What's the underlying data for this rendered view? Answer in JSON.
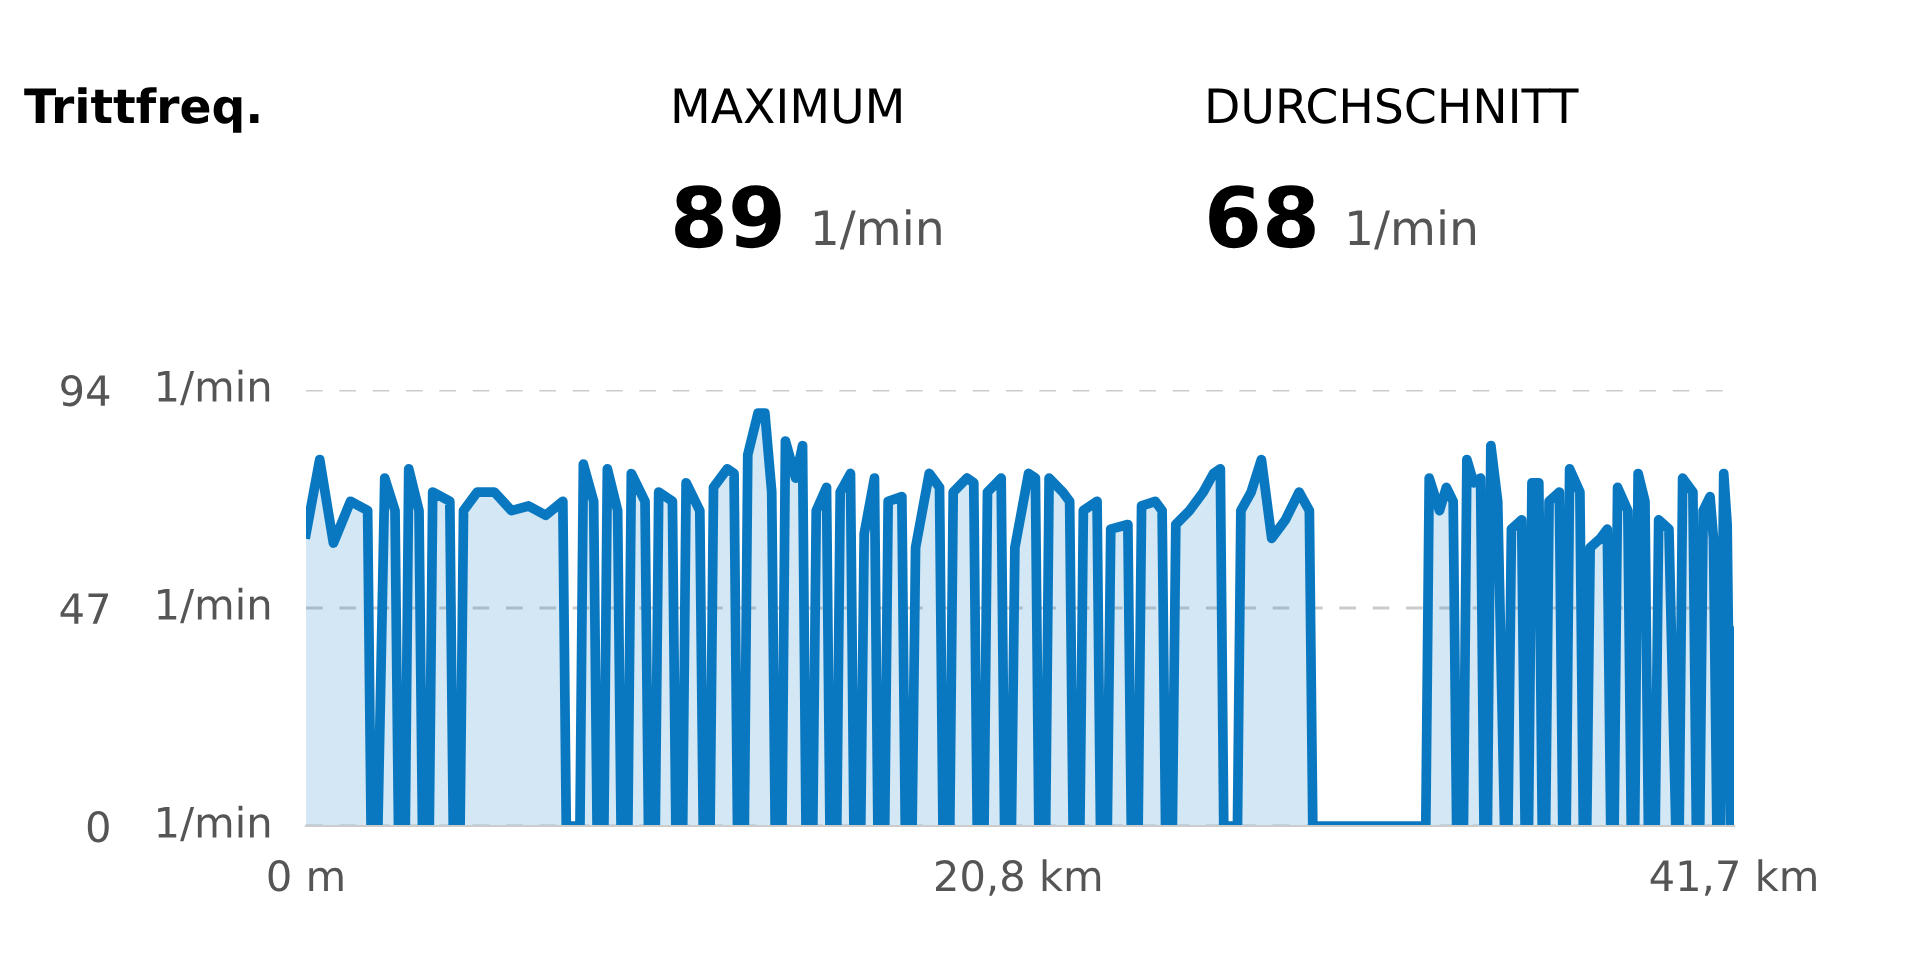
{
  "chart_data": {
    "type": "area",
    "title": "Trittfreq.",
    "annotations": [
      "MAXIMUM",
      "89 1/min",
      "DURCHSCHNITT",
      "68 1/min"
    ],
    "xlim": [
      0,
      41.7
    ],
    "ylim": [
      0,
      94
    ],
    "xticks": [
      {
        "value": 0,
        "label": "0 m"
      },
      {
        "value": 20.8,
        "label": "20,8 km"
      },
      {
        "value": 41.7,
        "label": "41,7 km"
      }
    ],
    "yticks": [
      0,
      47,
      94
    ],
    "ylabel": "1/min",
    "grid": "y",
    "legend": false,
    "series": [
      {
        "color": "#0a78c1",
        "x": [
          0,
          0.4,
          0.8,
          1.3,
          1.8,
          1.9,
          2.1,
          2.3,
          2.6,
          2.7,
          2.9,
          3.0,
          3.3,
          3.4,
          3.6,
          3.7,
          4.2,
          4.3,
          4.5,
          4.6,
          5.0,
          5.5,
          6.0,
          6.5,
          7.0,
          7.5,
          7.6,
          8.0,
          8.1,
          8.4,
          8.5,
          8.7,
          8.8,
          9.1,
          9.2,
          9.4,
          9.5,
          9.9,
          10.0,
          10.2,
          10.3,
          10.7,
          10.8,
          11.0,
          11.1,
          11.5,
          11.6,
          11.8,
          11.9,
          12.3,
          12.5,
          12.6,
          12.8,
          12.9,
          13.2,
          13.4,
          13.6,
          13.7,
          13.9,
          14.0,
          14.3,
          14.5,
          14.6,
          14.8,
          14.9,
          15.2,
          15.3,
          15.5,
          15.6,
          15.9,
          16.0,
          16.2,
          16.3,
          16.6,
          16.7,
          16.9,
          17.0,
          17.4,
          17.5,
          17.7,
          17.8,
          18.2,
          18.5,
          18.6,
          18.8,
          18.9,
          19.3,
          19.5,
          19.6,
          19.8,
          19.9,
          20.3,
          20.4,
          20.6,
          20.7,
          21.1,
          21.3,
          21.4,
          21.6,
          21.7,
          22.1,
          22.3,
          22.4,
          22.6,
          22.7,
          23.1,
          23.2,
          23.4,
          23.5,
          24.0,
          24.1,
          24.3,
          24.4,
          24.8,
          25.0,
          25.1,
          25.3,
          25.4,
          25.8,
          26.2,
          26.5,
          26.7,
          26.8,
          27.2,
          27.3,
          27.6,
          27.9,
          28.2,
          28.6,
          29.0,
          29.3,
          29.4,
          32.7,
          32.8,
          33.1,
          33.3,
          33.5,
          33.6,
          33.8,
          33.9,
          34.1,
          34.3,
          34.4,
          34.5,
          34.6,
          34.8,
          35.0,
          35.1,
          35.2,
          35.5,
          35.6,
          35.7,
          35.8,
          36.0,
          36.1,
          36.2,
          36.3,
          36.6,
          36.7,
          36.8,
          36.9,
          37.2,
          37.3,
          37.4,
          37.5,
          37.8,
          38.0,
          38.1,
          38.2,
          38.3,
          38.6,
          38.7,
          38.8,
          38.9,
          39.1,
          39.2,
          39.4,
          39.5,
          39.8,
          40.0,
          40.1,
          40.2,
          40.5,
          40.6,
          40.7,
          40.8,
          41.0,
          41.1,
          41.2,
          41.3,
          41.4,
          41.5,
          41.6,
          41.7
        ],
        "values": [
          63,
          79,
          61,
          70,
          68,
          0,
          0,
          75,
          68,
          0,
          0,
          77,
          68,
          0,
          0,
          72,
          70,
          0,
          0,
          68,
          72,
          72,
          68,
          69,
          67,
          70,
          0,
          0,
          78,
          70,
          0,
          0,
          77,
          68,
          0,
          0,
          76,
          70,
          0,
          0,
          72,
          70,
          0,
          0,
          74,
          68,
          0,
          0,
          73,
          77,
          76,
          0,
          0,
          80,
          89,
          89,
          72,
          0,
          0,
          83,
          75,
          82,
          0,
          0,
          68,
          73,
          0,
          0,
          72,
          76,
          0,
          0,
          63,
          75,
          0,
          0,
          70,
          71,
          0,
          0,
          60,
          76,
          73,
          0,
          0,
          72,
          75,
          74,
          0,
          0,
          72,
          75,
          0,
          0,
          60,
          76,
          75,
          0,
          0,
          75,
          72,
          70,
          0,
          0,
          68,
          70,
          0,
          0,
          64,
          65,
          0,
          0,
          69,
          70,
          68,
          0,
          0,
          65,
          68,
          72,
          76,
          77,
          0,
          0,
          68,
          72,
          79,
          62,
          66,
          72,
          68,
          0,
          0,
          75,
          68,
          73,
          70,
          0,
          0,
          79,
          74,
          75,
          0,
          0,
          82,
          70,
          0,
          0,
          64,
          66,
          0,
          0,
          74,
          74,
          0,
          0,
          70,
          72,
          0,
          0,
          77,
          72,
          0,
          0,
          60,
          62,
          64,
          0,
          0,
          73,
          68,
          0,
          0,
          76,
          70,
          0,
          0,
          66,
          64,
          0,
          0,
          75,
          72,
          0,
          0,
          68,
          71,
          62,
          0,
          0,
          76,
          65,
          0,
          42
        ]
      }
    ]
  }
}
